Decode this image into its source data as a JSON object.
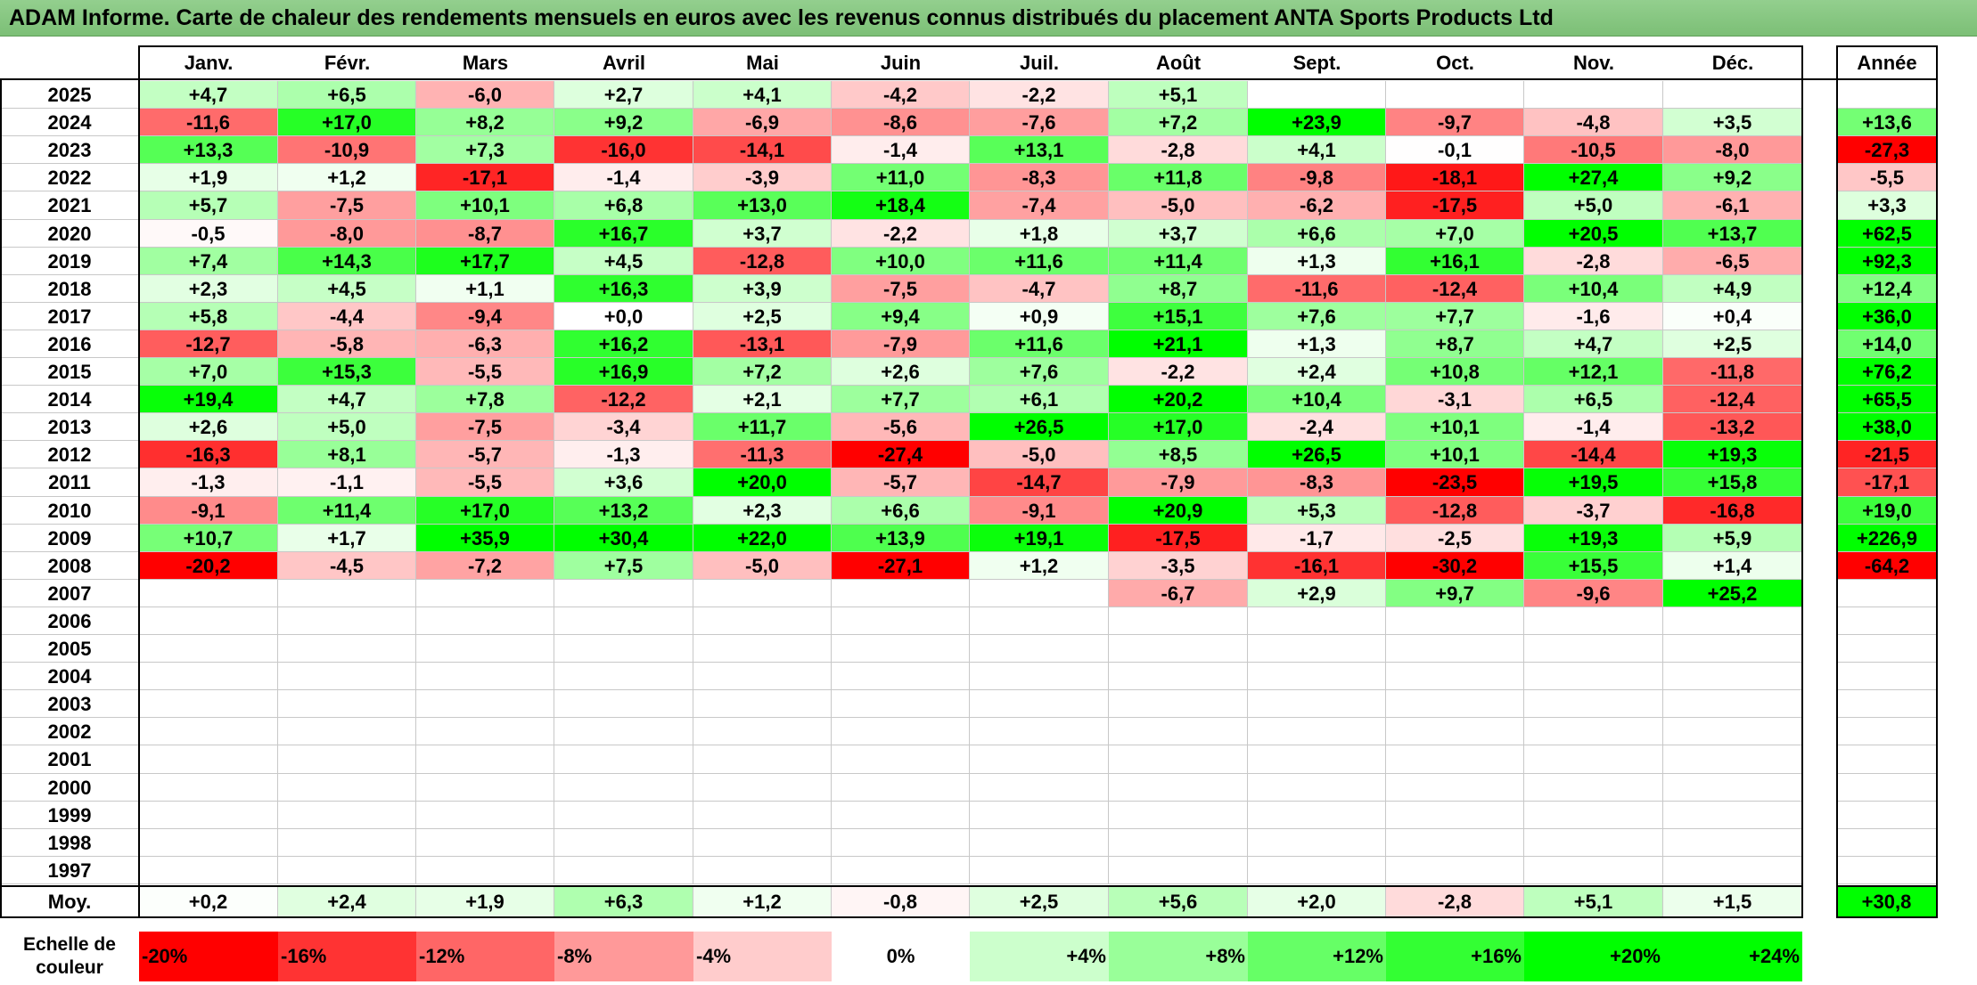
{
  "title": "ADAM Informe. Carte de chaleur des rendements mensuels en euros avec les revenus connus distribués du placement ANTA Sports Products Ltd",
  "chart_data": {
    "type": "heatmap",
    "months": [
      "Janv.",
      "Févr.",
      "Mars",
      "Avril",
      "Mai",
      "Juin",
      "Juil.",
      "Août",
      "Sept.",
      "Oct.",
      "Nov.",
      "Déc."
    ],
    "annual_header": "Année",
    "rows": [
      {
        "year": "2025",
        "values": [
          "+4,7",
          "+6,5",
          "-6,0",
          "+2,7",
          "+4,1",
          "-4,2",
          "-2,2",
          "+5,1",
          "",
          "",
          "",
          ""
        ],
        "annual": ""
      },
      {
        "year": "2024",
        "values": [
          "-11,6",
          "+17,0",
          "+8,2",
          "+9,2",
          "-6,9",
          "-8,6",
          "-7,6",
          "+7,2",
          "+23,9",
          "-9,7",
          "-4,8",
          "+3,5"
        ],
        "annual": "+13,6"
      },
      {
        "year": "2023",
        "values": [
          "+13,3",
          "-10,9",
          "+7,3",
          "-16,0",
          "-14,1",
          "-1,4",
          "+13,1",
          "-2,8",
          "+4,1",
          "-0,1",
          "-10,5",
          "-8,0"
        ],
        "annual": "-27,3"
      },
      {
        "year": "2022",
        "values": [
          "+1,9",
          "+1,2",
          "-17,1",
          "-1,4",
          "-3,9",
          "+11,0",
          "-8,3",
          "+11,8",
          "-9,8",
          "-18,1",
          "+27,4",
          "+9,2"
        ],
        "annual": "-5,5"
      },
      {
        "year": "2021",
        "values": [
          "+5,7",
          "-7,5",
          "+10,1",
          "+6,8",
          "+13,0",
          "+18,4",
          "-7,4",
          "-5,0",
          "-6,2",
          "-17,5",
          "+5,0",
          "-6,1"
        ],
        "annual": "+3,3"
      },
      {
        "year": "2020",
        "values": [
          "-0,5",
          "-8,0",
          "-8,7",
          "+16,7",
          "+3,7",
          "-2,2",
          "+1,8",
          "+3,7",
          "+6,6",
          "+7,0",
          "+20,5",
          "+13,7"
        ],
        "annual": "+62,5"
      },
      {
        "year": "2019",
        "values": [
          "+7,4",
          "+14,3",
          "+17,7",
          "+4,5",
          "-12,8",
          "+10,0",
          "+11,6",
          "+11,4",
          "+1,3",
          "+16,1",
          "-2,8",
          "-6,5"
        ],
        "annual": "+92,3"
      },
      {
        "year": "2018",
        "values": [
          "+2,3",
          "+4,5",
          "+1,1",
          "+16,3",
          "+3,9",
          "-7,5",
          "-4,7",
          "+8,7",
          "-11,6",
          "-12,4",
          "+10,4",
          "+4,9"
        ],
        "annual": "+12,4"
      },
      {
        "year": "2017",
        "values": [
          "+5,8",
          "-4,4",
          "-9,4",
          "+0,0",
          "+2,5",
          "+9,4",
          "+0,9",
          "+15,1",
          "+7,6",
          "+7,7",
          "-1,6",
          "+0,4"
        ],
        "annual": "+36,0"
      },
      {
        "year": "2016",
        "values": [
          "-12,7",
          "-5,8",
          "-6,3",
          "+16,2",
          "-13,1",
          "-7,9",
          "+11,6",
          "+21,1",
          "+1,3",
          "+8,7",
          "+4,7",
          "+2,5"
        ],
        "annual": "+14,0"
      },
      {
        "year": "2015",
        "values": [
          "+7,0",
          "+15,3",
          "-5,5",
          "+16,9",
          "+7,2",
          "+2,6",
          "+7,6",
          "-2,2",
          "+2,4",
          "+10,8",
          "+12,1",
          "-11,8"
        ],
        "annual": "+76,2"
      },
      {
        "year": "2014",
        "values": [
          "+19,4",
          "+4,7",
          "+7,8",
          "-12,2",
          "+2,1",
          "+7,7",
          "+6,1",
          "+20,2",
          "+10,4",
          "-3,1",
          "+6,5",
          "-12,4"
        ],
        "annual": "+65,5"
      },
      {
        "year": "2013",
        "values": [
          "+2,6",
          "+5,0",
          "-7,5",
          "-3,4",
          "+11,7",
          "-5,6",
          "+26,5",
          "+17,0",
          "-2,4",
          "+10,1",
          "-1,4",
          "-13,2"
        ],
        "annual": "+38,0"
      },
      {
        "year": "2012",
        "values": [
          "-16,3",
          "+8,1",
          "-5,7",
          "-1,3",
          "-11,3",
          "-27,4",
          "-5,0",
          "+8,5",
          "+26,5",
          "+10,1",
          "-14,4",
          "+19,3"
        ],
        "annual": "-21,5"
      },
      {
        "year": "2011",
        "values": [
          "-1,3",
          "-1,1",
          "-5,5",
          "+3,6",
          "+20,0",
          "-5,7",
          "-14,7",
          "-7,9",
          "-8,3",
          "-23,5",
          "+19,5",
          "+15,8"
        ],
        "annual": "-17,1"
      },
      {
        "year": "2010",
        "values": [
          "-9,1",
          "+11,4",
          "+17,0",
          "+13,2",
          "+2,3",
          "+6,6",
          "-9,1",
          "+20,9",
          "+5,3",
          "-12,8",
          "-3,7",
          "-16,8"
        ],
        "annual": "+19,0"
      },
      {
        "year": "2009",
        "values": [
          "+10,7",
          "+1,7",
          "+35,9",
          "+30,4",
          "+22,0",
          "+13,9",
          "+19,1",
          "-17,5",
          "-1,7",
          "-2,5",
          "+19,3",
          "+5,9"
        ],
        "annual": "+226,9"
      },
      {
        "year": "2008",
        "values": [
          "-20,2",
          "-4,5",
          "-7,2",
          "+7,5",
          "-5,0",
          "-27,1",
          "+1,2",
          "-3,5",
          "-16,1",
          "-30,2",
          "+15,5",
          "+1,4"
        ],
        "annual": "-64,2"
      },
      {
        "year": "2007",
        "values": [
          "",
          "",
          "",
          "",
          "",
          "",
          "",
          "-6,7",
          "+2,9",
          "+9,7",
          "-9,6",
          "+25,2"
        ],
        "annual": ""
      },
      {
        "year": "2006",
        "values": [
          "",
          "",
          "",
          "",
          "",
          "",
          "",
          "",
          "",
          "",
          "",
          ""
        ],
        "annual": ""
      },
      {
        "year": "2005",
        "values": [
          "",
          "",
          "",
          "",
          "",
          "",
          "",
          "",
          "",
          "",
          "",
          ""
        ],
        "annual": ""
      },
      {
        "year": "2004",
        "values": [
          "",
          "",
          "",
          "",
          "",
          "",
          "",
          "",
          "",
          "",
          "",
          ""
        ],
        "annual": ""
      },
      {
        "year": "2003",
        "values": [
          "",
          "",
          "",
          "",
          "",
          "",
          "",
          "",
          "",
          "",
          "",
          ""
        ],
        "annual": ""
      },
      {
        "year": "2002",
        "values": [
          "",
          "",
          "",
          "",
          "",
          "",
          "",
          "",
          "",
          "",
          "",
          ""
        ],
        "annual": ""
      },
      {
        "year": "2001",
        "values": [
          "",
          "",
          "",
          "",
          "",
          "",
          "",
          "",
          "",
          "",
          "",
          ""
        ],
        "annual": ""
      },
      {
        "year": "2000",
        "values": [
          "",
          "",
          "",
          "",
          "",
          "",
          "",
          "",
          "",
          "",
          "",
          ""
        ],
        "annual": ""
      },
      {
        "year": "1999",
        "values": [
          "",
          "",
          "",
          "",
          "",
          "",
          "",
          "",
          "",
          "",
          "",
          ""
        ],
        "annual": ""
      },
      {
        "year": "1998",
        "values": [
          "",
          "",
          "",
          "",
          "",
          "",
          "",
          "",
          "",
          "",
          "",
          ""
        ],
        "annual": ""
      },
      {
        "year": "1997",
        "values": [
          "",
          "",
          "",
          "",
          "",
          "",
          "",
          "",
          "",
          "",
          "",
          ""
        ],
        "annual": ""
      }
    ],
    "average": {
      "label": "Moy.",
      "values": [
        "+0,2",
        "+2,4",
        "+1,9",
        "+6,3",
        "+1,2",
        "-0,8",
        "+2,5",
        "+5,6",
        "+2,0",
        "-2,8",
        "+5,1",
        "+1,5"
      ],
      "annual": "+30,8"
    },
    "color_scale": {
      "label_line1": "Echelle de",
      "label_line2": "couleur",
      "stops": [
        "-20%",
        "-16%",
        "-12%",
        "-8%",
        "-4%",
        "0%",
        "+4%",
        "+8%",
        "+12%",
        "+16%",
        "+20%",
        "+24%"
      ],
      "negative_color": "#ff0000",
      "positive_color": "#00ff00",
      "neutral_color": "#ffffff"
    }
  }
}
